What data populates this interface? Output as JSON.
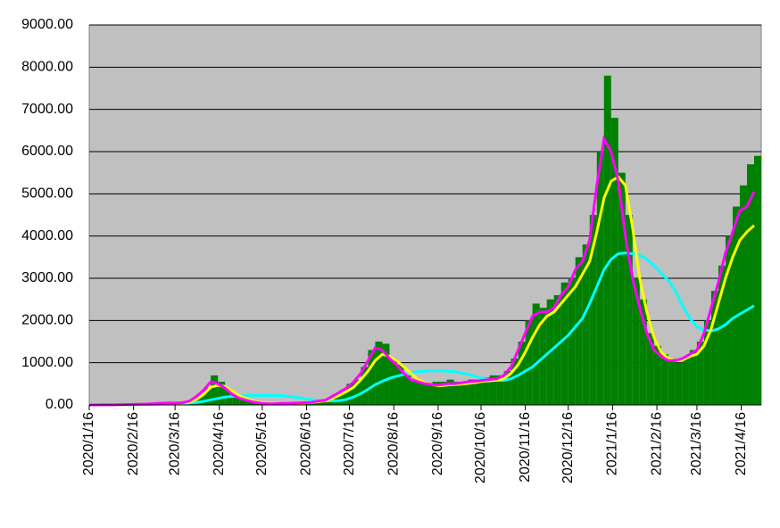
{
  "chart_data": {
    "type": "bar",
    "x": [
      "2020/1/16",
      "2020/1/21",
      "2020/1/26",
      "2020/1/31",
      "2020/2/5",
      "2020/2/10",
      "2020/2/15",
      "2020/2/20",
      "2020/2/25",
      "2020/3/1",
      "2020/3/6",
      "2020/3/11",
      "2020/3/16",
      "2020/3/21",
      "2020/3/26",
      "2020/3/31",
      "2020/4/5",
      "2020/4/10",
      "2020/4/15",
      "2020/4/20",
      "2020/4/25",
      "2020/4/30",
      "2020/5/5",
      "2020/5/10",
      "2020/5/15",
      "2020/5/20",
      "2020/5/25",
      "2020/5/30",
      "2020/6/4",
      "2020/6/9",
      "2020/6/14",
      "2020/6/19",
      "2020/6/24",
      "2020/6/29",
      "2020/7/4",
      "2020/7/9",
      "2020/7/14",
      "2020/7/19",
      "2020/7/24",
      "2020/7/29",
      "2020/8/3",
      "2020/8/8",
      "2020/8/13",
      "2020/8/18",
      "2020/8/23",
      "2020/8/28",
      "2020/9/2",
      "2020/9/7",
      "2020/9/12",
      "2020/9/17",
      "2020/9/22",
      "2020/9/27",
      "2020/10/2",
      "2020/10/7",
      "2020/10/12",
      "2020/10/17",
      "2020/10/22",
      "2020/10/27",
      "2020/11/1",
      "2020/11/6",
      "2020/11/11",
      "2020/11/16",
      "2020/11/21",
      "2020/11/26",
      "2020/12/1",
      "2020/12/6",
      "2020/12/11",
      "2020/12/16",
      "2020/12/21",
      "2020/12/26",
      "2020/12/31",
      "2021/1/5",
      "2021/1/10",
      "2021/1/15",
      "2021/1/20",
      "2021/1/25",
      "2021/1/30",
      "2021/2/4",
      "2021/2/9",
      "2021/2/14",
      "2021/2/19",
      "2021/2/24",
      "2021/3/1",
      "2021/3/6",
      "2021/3/11",
      "2021/3/16",
      "2021/3/21",
      "2021/3/26",
      "2021/3/31",
      "2021/4/5",
      "2021/4/10",
      "2021/4/15",
      "2021/4/20",
      "2021/4/25"
    ],
    "series": [
      {
        "type": "bar",
        "color": "#008000",
        "values": [
          0,
          1,
          3,
          5,
          8,
          10,
          15,
          20,
          25,
          30,
          50,
          50,
          40,
          60,
          100,
          250,
          400,
          700,
          550,
          350,
          200,
          150,
          100,
          40,
          30,
          25,
          20,
          40,
          40,
          50,
          60,
          70,
          100,
          120,
          250,
          350,
          500,
          600,
          900,
          1300,
          1500,
          1450,
          1100,
          950,
          700,
          600,
          550,
          500,
          550,
          550,
          600,
          550,
          550,
          600,
          600,
          650,
          700,
          700,
          800,
          1100,
          1500,
          2000,
          2400,
          2300,
          2500,
          2600,
          2900,
          3000,
          3500,
          3800,
          4500,
          6000,
          7800,
          6800,
          5500,
          4500,
          3000,
          2500,
          1700,
          1400,
          1200,
          1100,
          1000,
          1100,
          1300,
          1500,
          2000,
          2700,
          3300,
          4000,
          4700,
          5200,
          5700,
          5900
        ]
      },
      {
        "type": "line",
        "color": "#00ffff",
        "values": [
          0,
          0,
          0,
          1,
          2,
          4,
          6,
          9,
          13,
          17,
          22,
          28,
          32,
          37,
          45,
          60,
          85,
          120,
          155,
          185,
          200,
          215,
          222,
          225,
          225,
          225,
          225,
          220,
          200,
          180,
          155,
          125,
          105,
          95,
          95,
          100,
          130,
          190,
          270,
          370,
          480,
          560,
          630,
          680,
          720,
          760,
          790,
          800,
          810,
          810,
          800,
          790,
          760,
          720,
          680,
          630,
          600,
          580,
          580,
          620,
          700,
          800,
          900,
          1050,
          1200,
          1350,
          1500,
          1650,
          1850,
          2050,
          2400,
          2800,
          3200,
          3450,
          3580,
          3600,
          3580,
          3550,
          3450,
          3300,
          3120,
          2950,
          2700,
          2350,
          2050,
          1850,
          1780,
          1750,
          1800,
          1900,
          2050,
          2150,
          2250,
          2350
        ]
      },
      {
        "type": "line",
        "color": "#ffff00",
        "values": [
          0,
          0,
          1,
          2,
          4,
          6,
          10,
          15,
          20,
          25,
          35,
          40,
          42,
          45,
          60,
          130,
          250,
          420,
          460,
          440,
          330,
          220,
          150,
          90,
          60,
          35,
          28,
          30,
          35,
          40,
          45,
          55,
          75,
          95,
          150,
          230,
          320,
          420,
          600,
          800,
          1050,
          1200,
          1150,
          1050,
          900,
          750,
          600,
          520,
          480,
          450,
          470,
          480,
          490,
          510,
          530,
          560,
          570,
          590,
          620,
          750,
          950,
          1250,
          1600,
          1900,
          2100,
          2200,
          2400,
          2600,
          2800,
          3100,
          3400,
          4100,
          4900,
          5300,
          5400,
          5200,
          4200,
          3000,
          2200,
          1600,
          1250,
          1100,
          1050,
          1060,
          1150,
          1200,
          1400,
          1800,
          2400,
          3000,
          3500,
          3900,
          4100,
          4250
        ]
      },
      {
        "type": "line",
        "color": "#ff00ff",
        "values": [
          0,
          1,
          2,
          3,
          5,
          8,
          12,
          18,
          22,
          30,
          40,
          45,
          45,
          50,
          90,
          200,
          350,
          550,
          500,
          400,
          250,
          160,
          110,
          70,
          40,
          25,
          25,
          35,
          40,
          45,
          50,
          60,
          90,
          110,
          200,
          300,
          400,
          550,
          750,
          1050,
          1350,
          1300,
          1100,
          950,
          750,
          600,
          550,
          500,
          480,
          470,
          500,
          500,
          520,
          550,
          560,
          580,
          600,
          620,
          700,
          900,
          1300,
          1700,
          2100,
          2200,
          2200,
          2300,
          2600,
          2800,
          3200,
          3400,
          3900,
          5200,
          6300,
          6000,
          5300,
          4000,
          3000,
          2300,
          1700,
          1300,
          1150,
          1050,
          1050,
          1100,
          1200,
          1300,
          1700,
          2300,
          2900,
          3600,
          4100,
          4600,
          4700,
          5050
        ]
      }
    ],
    "xlim": [
      "2020/1/16",
      "2021/4/30"
    ],
    "xticks": [
      "2020/1/16",
      "2020/2/16",
      "2020/3/16",
      "2020/4/16",
      "2020/5/16",
      "2020/6/16",
      "2020/7/16",
      "2020/8/16",
      "2020/9/16",
      "2020/10/16",
      "2020/11/16",
      "2020/12/16",
      "2021/1/16",
      "2021/2/16",
      "2021/3/16",
      "2021/4/16"
    ],
    "ylim": [
      0,
      9000
    ],
    "yticks": [
      {
        "value": 0,
        "label": "0.00"
      },
      {
        "value": 1000,
        "label": "1000.00"
      },
      {
        "value": 2000,
        "label": "2000.00"
      },
      {
        "value": 3000,
        "label": "3000.00"
      },
      {
        "value": 4000,
        "label": "4000.00"
      },
      {
        "value": 5000,
        "label": "5000.00"
      },
      {
        "value": 6000,
        "label": "6000.00"
      },
      {
        "value": 7000,
        "label": "7000.00"
      },
      {
        "value": 8000,
        "label": "8000.00"
      },
      {
        "value": 9000,
        "label": "9000.00"
      }
    ],
    "grid": true
  }
}
